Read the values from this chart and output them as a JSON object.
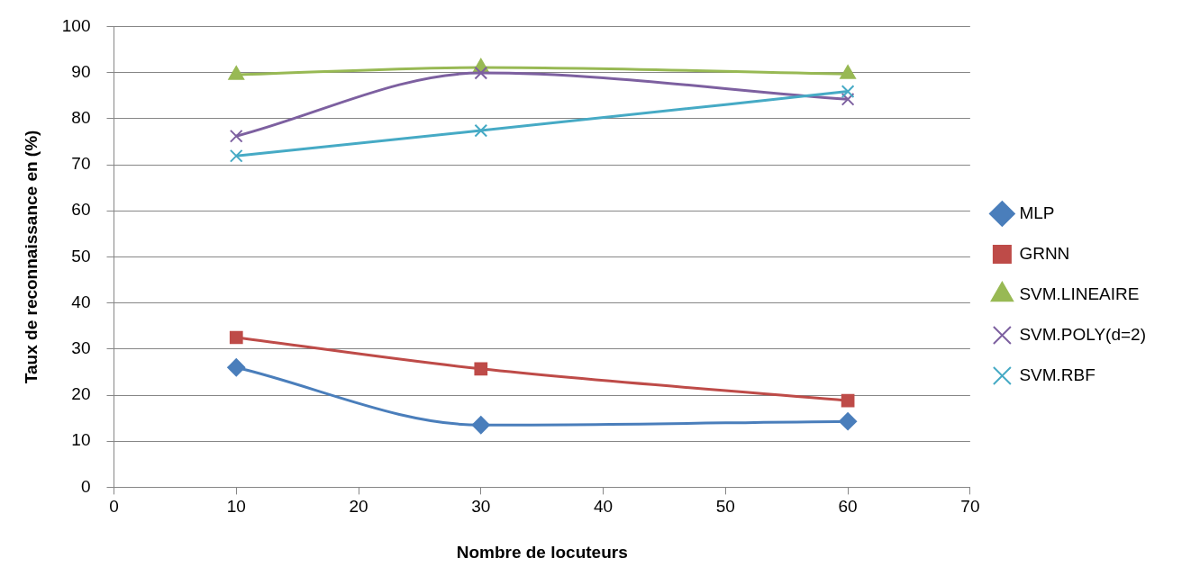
{
  "chart_data": {
    "type": "line",
    "xlabel": "Nombre de locuteurs",
    "ylabel": "Taux de reconnaissance en (%)",
    "x": [
      10,
      30,
      60
    ],
    "series": [
      {
        "name": "MLP",
        "color": "#4a7ebb",
        "marker": "diamond",
        "values": [
          26,
          13.5,
          14.3
        ]
      },
      {
        "name": "GRNN",
        "color": "#be4b48",
        "marker": "square",
        "values": [
          32.5,
          25.7,
          18.8
        ]
      },
      {
        "name": "SVM.LINEAIRE",
        "color": "#98b954",
        "marker": "triangle",
        "values": [
          89.5,
          91.1,
          89.7
        ]
      },
      {
        "name": "SVM.POLY(d=2)",
        "color": "#7d60a0",
        "marker": "cross",
        "values": [
          76.2,
          89.9,
          84.2
        ]
      },
      {
        "name": "SVM.RBF",
        "color": "#46aac5",
        "marker": "cross",
        "values": [
          71.9,
          77.4,
          85.9
        ]
      }
    ],
    "xlim": [
      0,
      70
    ],
    "xticks": [
      0,
      10,
      20,
      30,
      40,
      50,
      60,
      70
    ],
    "ylim": [
      0,
      100
    ],
    "yticks": [
      0,
      10,
      20,
      30,
      40,
      50,
      60,
      70,
      80,
      90,
      100
    ],
    "grid": "y",
    "legend": "right"
  }
}
